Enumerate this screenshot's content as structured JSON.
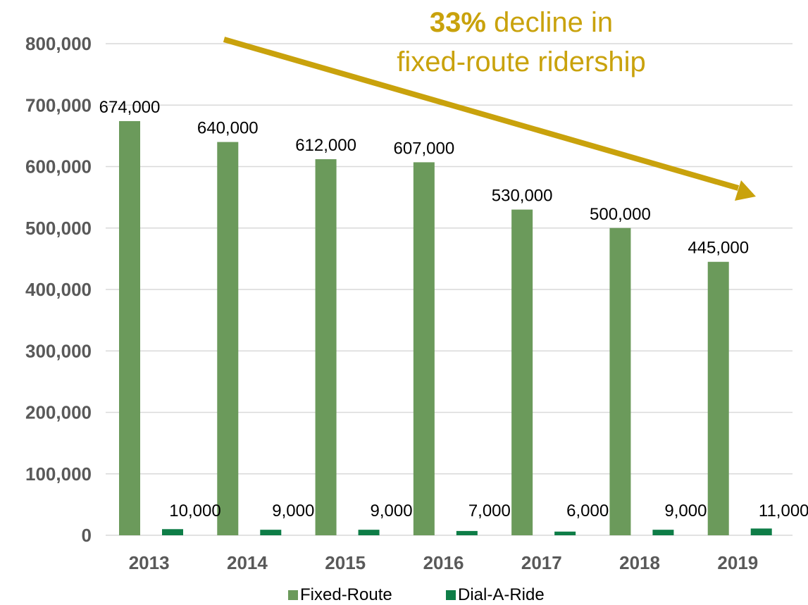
{
  "chart_data": {
    "type": "bar",
    "categories": [
      "2013",
      "2014",
      "2015",
      "2016",
      "2017",
      "2018",
      "2019"
    ],
    "series": [
      {
        "name": "Fixed-Route",
        "values": [
          674000,
          640000,
          612000,
          607000,
          530000,
          500000,
          445000
        ],
        "labels": [
          "674,000",
          "640,000",
          "612,000",
          "607,000",
          "530,000",
          "500,000",
          "445,000"
        ]
      },
      {
        "name": "Dial-A-Ride",
        "values": [
          10000,
          9000,
          9000,
          7000,
          6000,
          9000,
          11000
        ],
        "labels": [
          "10,000",
          "9,000",
          "9,000",
          "7,000",
          "6,000",
          "9,000",
          "11,000"
        ]
      }
    ],
    "yticks": [
      "0",
      "100,000",
      "200,000",
      "300,000",
      "400,000",
      "500,000",
      "600,000",
      "700,000",
      "800,000"
    ],
    "ylim": [
      0,
      800000
    ],
    "grid": true,
    "legend_position": "bottom",
    "annotation": {
      "highlight": "33%",
      "line1_rest": " decline in",
      "line2": "fixed-route ridership"
    }
  },
  "colors": {
    "fixed_route": "#6b9a5b",
    "dial_a_ride": "#0e7d47",
    "arrow": "#c9a20c",
    "grid": "#d9d9d9",
    "axis_text": "#595959"
  }
}
